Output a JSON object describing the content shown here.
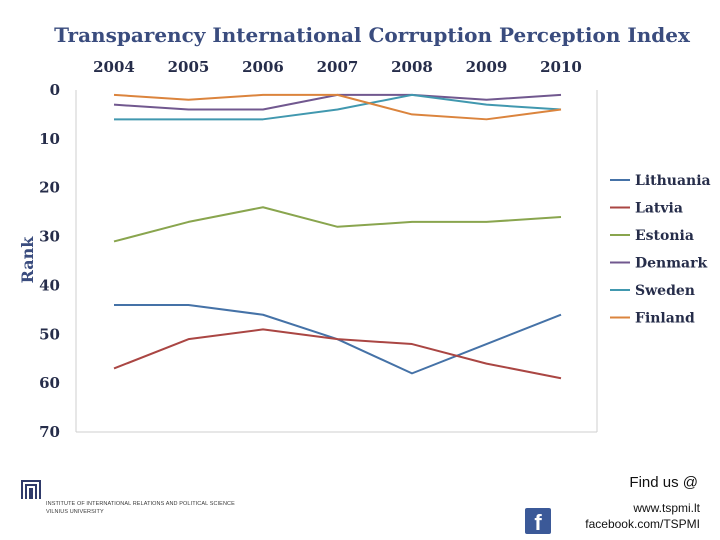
{
  "chart_data": {
    "type": "line",
    "title": "Transparency International Corruption Perception Index",
    "ylabel": "Rank",
    "xlabel": "",
    "ylim": [
      0,
      70
    ],
    "y_inverted": true,
    "grid": false,
    "legend_position": "right",
    "categories": [
      "2004",
      "2005",
      "2006",
      "2007",
      "2008",
      "2009",
      "2010"
    ],
    "yticks": [
      "0",
      "10",
      "20",
      "30",
      "40",
      "50",
      "60",
      "70"
    ],
    "series": [
      {
        "name": "Lithuania",
        "color": "#4572a7",
        "values": [
          44,
          44,
          46,
          51,
          58,
          52,
          46
        ]
      },
      {
        "name": "Latvia",
        "color": "#aa4643",
        "values": [
          57,
          51,
          49,
          51,
          52,
          56,
          59
        ]
      },
      {
        "name": "Estonia",
        "color": "#89a54e",
        "values": [
          31,
          27,
          24,
          28,
          27,
          27,
          26
        ]
      },
      {
        "name": "Denmark",
        "color": "#71588f",
        "values": [
          3,
          4,
          4,
          1,
          1,
          2,
          1
        ]
      },
      {
        "name": "Sweden",
        "color": "#4198af",
        "values": [
          6,
          6,
          6,
          4,
          1,
          3,
          4
        ]
      },
      {
        "name": "Finland",
        "color": "#db843d",
        "values": [
          1,
          2,
          1,
          1,
          5,
          6,
          4
        ]
      }
    ]
  },
  "footer": {
    "find_us": "Find us @",
    "website": "www.tspmi.lt",
    "facebook": "facebook.com/TSPMI",
    "institution_line1": "Institute of International Relations and Political Science",
    "institution_line2": "Vilnius University"
  },
  "colors": {
    "title": "#3a4c7e",
    "axis": "#262d4a"
  }
}
